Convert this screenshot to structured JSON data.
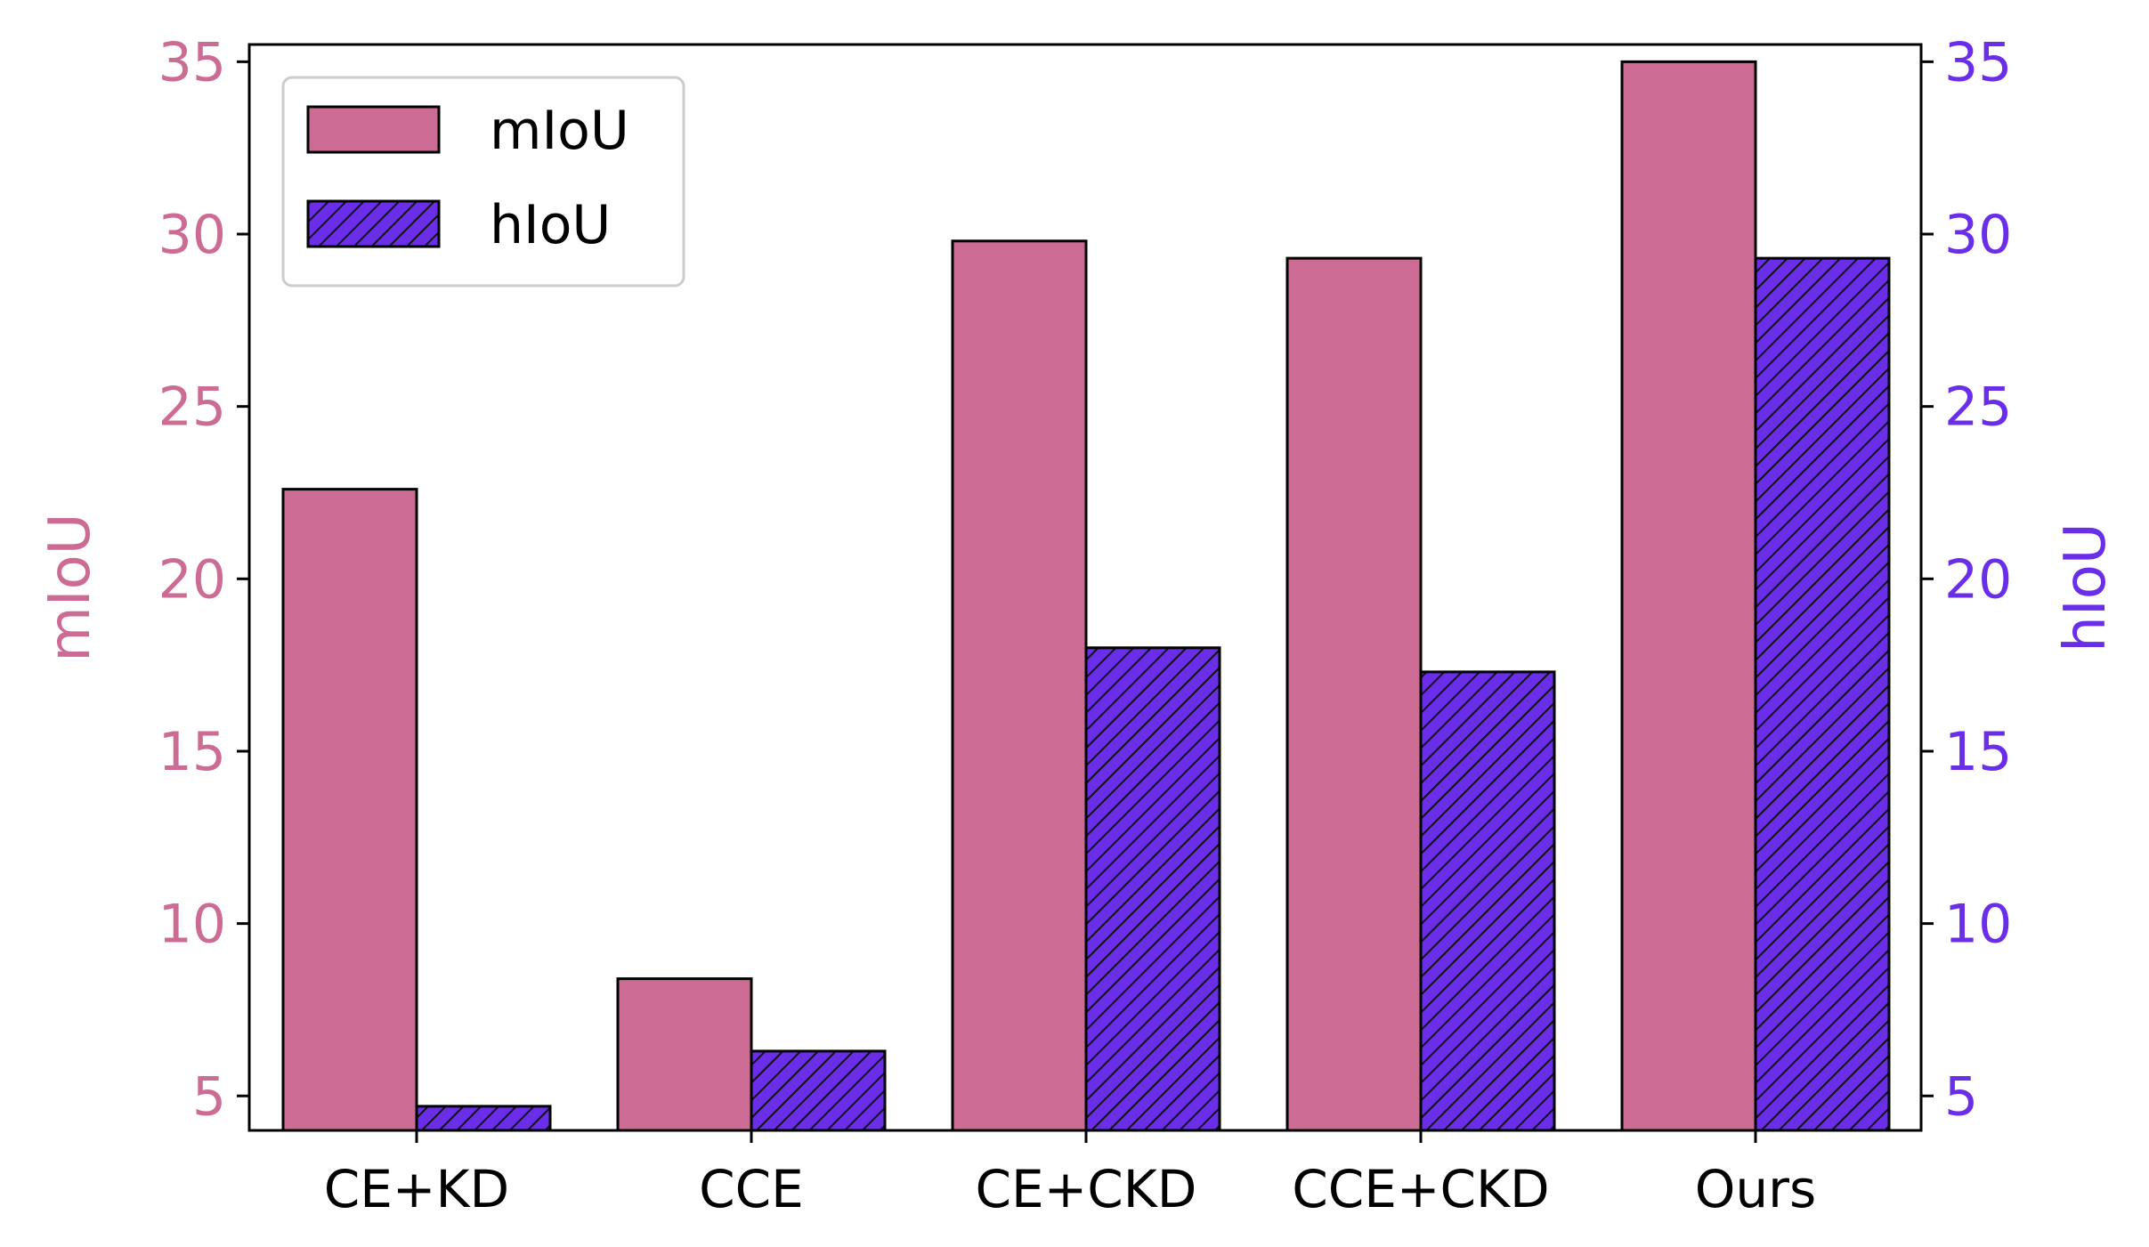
{
  "chart_data": {
    "type": "bar",
    "categories": [
      "CE+KD",
      "CCE",
      "CE+CKD",
      "CCE+CKD",
      "Ours"
    ],
    "series": [
      {
        "name": "mIoU",
        "values": [
          22.6,
          8.4,
          29.8,
          29.3,
          35.0
        ],
        "color": "#cc6b94",
        "hatch": false,
        "axis": "left"
      },
      {
        "name": "hIoU",
        "values": [
          4.7,
          6.3,
          18.0,
          17.3,
          29.3
        ],
        "color": "#6a2ee8",
        "hatch": true,
        "axis": "right"
      }
    ],
    "ylabel_left": "mIoU",
    "ylabel_right": "hIoU",
    "ylim": [
      4,
      35.5
    ],
    "yticks": [
      5,
      10,
      15,
      20,
      25,
      30,
      35
    ],
    "left_axis_color": "#cc6b94",
    "right_axis_color": "#6a2ee8",
    "legend": {
      "position": "top-left",
      "entries": [
        "mIoU",
        "hIoU"
      ]
    },
    "grid": false
  }
}
